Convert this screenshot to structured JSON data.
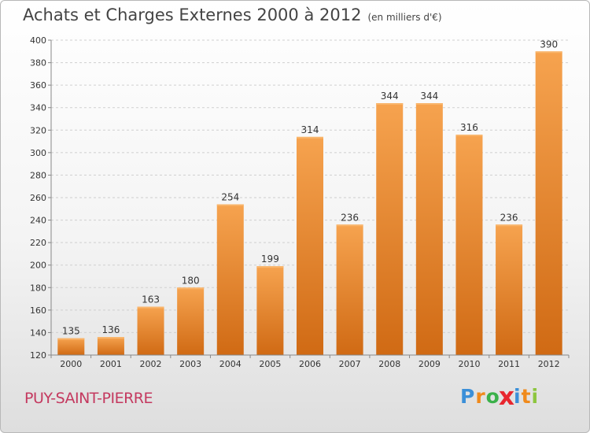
{
  "header": {
    "title": "Achats et Charges Externes 2000 à 2012",
    "subtitle": "(en milliers d'€)"
  },
  "footer": {
    "commune": "PUY-SAINT-PIERRE",
    "logo_letters": [
      "P",
      "r",
      "o",
      "x",
      "i",
      "t",
      "i"
    ],
    "logo_colors": [
      "#3b8fd8",
      "#f08a1c",
      "#3bb14a",
      "#e8262e",
      "#3b8fd8",
      "#f08a1c",
      "#8dc63f"
    ]
  },
  "chart_data": {
    "type": "bar",
    "title": "Achats et Charges Externes 2000 à 2012",
    "xlabel": "",
    "ylabel": "",
    "categories": [
      "2000",
      "2001",
      "2002",
      "2003",
      "2004",
      "2005",
      "2006",
      "2007",
      "2008",
      "2009",
      "2010",
      "2011",
      "2012"
    ],
    "values": [
      135,
      136,
      163,
      180,
      254,
      199,
      314,
      236,
      344,
      344,
      316,
      236,
      390
    ],
    "ylim": [
      120,
      400
    ],
    "yticks": [
      120,
      140,
      160,
      180,
      200,
      220,
      240,
      260,
      280,
      300,
      320,
      340,
      360,
      380,
      400
    ],
    "grid": true,
    "bar_color": "#f0922f",
    "bar_color_dark": "#d06a14"
  }
}
